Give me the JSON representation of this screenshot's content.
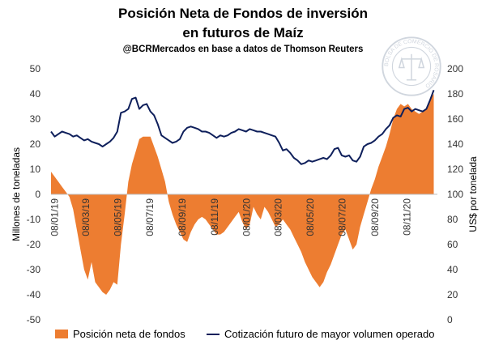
{
  "header": {
    "title_line1": "Posición Neta de Fondos de inversión",
    "title_line2": "en futuros de Maíz",
    "subtitle": "@BCRMercados  en base a datos de Thomson Reuters"
  },
  "colors": {
    "area": "#ED7D31",
    "line": "#0E1F5B",
    "seal": "#7C8CA3"
  },
  "seal_text": "BOLSA DE COMERCIO DE ROSARIO",
  "chart_data": {
    "type": "area",
    "x_tick_labels": [
      "08/01/19",
      "08/03/19",
      "08/05/19",
      "08/07/19",
      "08/09/19",
      "08/11/19",
      "08/01/20",
      "08/03/20",
      "08/05/20",
      "08/07/20",
      "08/09/20",
      "08/11/20"
    ],
    "x_tick_dates": [
      "2019-01-08",
      "2019-03-08",
      "2019-05-08",
      "2019-07-08",
      "2019-09-08",
      "2019-11-08",
      "2020-01-08",
      "2020-03-08",
      "2020-05-08",
      "2020-07-08",
      "2020-09-08",
      "2020-11-08"
    ],
    "x_range": [
      "2019-01-01",
      "2021-01-05"
    ],
    "y_left": {
      "label": "Millones de toneladas",
      "min": -50,
      "max": 50,
      "ticks": [
        -50,
        -40,
        -30,
        -20,
        -10,
        0,
        10,
        20,
        30,
        40,
        50
      ]
    },
    "y_right": {
      "label": "US$ por tonelada",
      "min": 0,
      "max": 200,
      "ticks": [
        0,
        20,
        40,
        60,
        80,
        100,
        120,
        140,
        160,
        180,
        200
      ]
    },
    "grid": false,
    "legend_position": "bottom",
    "series": [
      {
        "name": "Posición neta de fondos",
        "type": "area",
        "axis": "left",
        "points": [
          [
            "2019-01-01",
            9
          ],
          [
            "2019-01-08",
            7
          ],
          [
            "2019-01-15",
            5
          ],
          [
            "2019-01-22",
            3
          ],
          [
            "2019-01-29",
            1
          ],
          [
            "2019-02-05",
            -1
          ],
          [
            "2019-02-12",
            -6
          ],
          [
            "2019-02-19",
            -14
          ],
          [
            "2019-02-26",
            -22
          ],
          [
            "2019-03-05",
            -30
          ],
          [
            "2019-03-12",
            -34
          ],
          [
            "2019-03-19",
            -27
          ],
          [
            "2019-03-26",
            -35
          ],
          [
            "2019-04-02",
            -37
          ],
          [
            "2019-04-09",
            -39
          ],
          [
            "2019-04-16",
            -40
          ],
          [
            "2019-04-23",
            -38
          ],
          [
            "2019-04-30",
            -35
          ],
          [
            "2019-05-07",
            -36
          ],
          [
            "2019-05-14",
            -20
          ],
          [
            "2019-05-21",
            -8
          ],
          [
            "2019-05-28",
            5
          ],
          [
            "2019-06-04",
            12
          ],
          [
            "2019-06-11",
            17
          ],
          [
            "2019-06-18",
            22
          ],
          [
            "2019-06-25",
            23
          ],
          [
            "2019-07-02",
            23
          ],
          [
            "2019-07-09",
            23
          ],
          [
            "2019-07-16",
            19
          ],
          [
            "2019-07-23",
            15
          ],
          [
            "2019-07-30",
            10
          ],
          [
            "2019-08-06",
            5
          ],
          [
            "2019-08-13",
            -3
          ],
          [
            "2019-08-20",
            -8
          ],
          [
            "2019-08-27",
            -12
          ],
          [
            "2019-09-03",
            -15
          ],
          [
            "2019-09-10",
            -18
          ],
          [
            "2019-09-17",
            -19
          ],
          [
            "2019-09-24",
            -15
          ],
          [
            "2019-10-01",
            -12
          ],
          [
            "2019-10-08",
            -10
          ],
          [
            "2019-10-15",
            -9
          ],
          [
            "2019-10-22",
            -10
          ],
          [
            "2019-10-29",
            -12
          ],
          [
            "2019-11-05",
            -14
          ],
          [
            "2019-11-12",
            -16
          ],
          [
            "2019-11-19",
            -16
          ],
          [
            "2019-11-26",
            -15
          ],
          [
            "2019-12-03",
            -13
          ],
          [
            "2019-12-10",
            -11
          ],
          [
            "2019-12-17",
            -9
          ],
          [
            "2019-12-24",
            -7
          ],
          [
            "2019-12-31",
            -11
          ],
          [
            "2020-01-07",
            -14
          ],
          [
            "2020-01-14",
            -12
          ],
          [
            "2020-01-21",
            -5
          ],
          [
            "2020-01-28",
            -8
          ],
          [
            "2020-02-04",
            -10
          ],
          [
            "2020-02-11",
            -5
          ],
          [
            "2020-02-18",
            -7
          ],
          [
            "2020-02-25",
            -10
          ],
          [
            "2020-03-03",
            -13
          ],
          [
            "2020-03-10",
            -12
          ],
          [
            "2020-03-17",
            -10
          ],
          [
            "2020-03-24",
            -12
          ],
          [
            "2020-03-31",
            -14
          ],
          [
            "2020-04-07",
            -17
          ],
          [
            "2020-04-14",
            -20
          ],
          [
            "2020-04-21",
            -23
          ],
          [
            "2020-04-28",
            -27
          ],
          [
            "2020-05-05",
            -30
          ],
          [
            "2020-05-12",
            -33
          ],
          [
            "2020-05-19",
            -35
          ],
          [
            "2020-05-26",
            -37
          ],
          [
            "2020-06-02",
            -35
          ],
          [
            "2020-06-09",
            -31
          ],
          [
            "2020-06-16",
            -28
          ],
          [
            "2020-06-23",
            -24
          ],
          [
            "2020-06-30",
            -20
          ],
          [
            "2020-07-07",
            -16
          ],
          [
            "2020-07-14",
            -14
          ],
          [
            "2020-07-21",
            -18
          ],
          [
            "2020-07-28",
            -22
          ],
          [
            "2020-08-04",
            -20
          ],
          [
            "2020-08-11",
            -13
          ],
          [
            "2020-08-18",
            -8
          ],
          [
            "2020-08-25",
            -3
          ],
          [
            "2020-09-01",
            2
          ],
          [
            "2020-09-08",
            6
          ],
          [
            "2020-09-15",
            11
          ],
          [
            "2020-09-22",
            15
          ],
          [
            "2020-09-29",
            19
          ],
          [
            "2020-10-06",
            24
          ],
          [
            "2020-10-13",
            30
          ],
          [
            "2020-10-20",
            34
          ],
          [
            "2020-10-27",
            36
          ],
          [
            "2020-11-03",
            35
          ],
          [
            "2020-11-10",
            36
          ],
          [
            "2020-11-17",
            34
          ],
          [
            "2020-11-24",
            33
          ],
          [
            "2020-12-01",
            32
          ],
          [
            "2020-12-08",
            33
          ],
          [
            "2020-12-15",
            34
          ],
          [
            "2020-12-22",
            38
          ],
          [
            "2020-12-29",
            40
          ]
        ]
      },
      {
        "name": "Cotización futuro de mayor volumen operado",
        "type": "line",
        "axis": "right",
        "points": [
          [
            "2019-01-01",
            150
          ],
          [
            "2019-01-08",
            146
          ],
          [
            "2019-01-15",
            148
          ],
          [
            "2019-01-22",
            150
          ],
          [
            "2019-01-29",
            149
          ],
          [
            "2019-02-05",
            148
          ],
          [
            "2019-02-12",
            146
          ],
          [
            "2019-02-19",
            147
          ],
          [
            "2019-02-26",
            145
          ],
          [
            "2019-03-05",
            143
          ],
          [
            "2019-03-12",
            144
          ],
          [
            "2019-03-19",
            142
          ],
          [
            "2019-03-26",
            141
          ],
          [
            "2019-04-02",
            140
          ],
          [
            "2019-04-09",
            138
          ],
          [
            "2019-04-16",
            140
          ],
          [
            "2019-04-23",
            142
          ],
          [
            "2019-04-30",
            145
          ],
          [
            "2019-05-07",
            150
          ],
          [
            "2019-05-14",
            165
          ],
          [
            "2019-05-21",
            166
          ],
          [
            "2019-05-28",
            168
          ],
          [
            "2019-06-04",
            176
          ],
          [
            "2019-06-11",
            177
          ],
          [
            "2019-06-18",
            168
          ],
          [
            "2019-06-25",
            171
          ],
          [
            "2019-07-02",
            172
          ],
          [
            "2019-07-09",
            166
          ],
          [
            "2019-07-16",
            163
          ],
          [
            "2019-07-23",
            156
          ],
          [
            "2019-07-30",
            147
          ],
          [
            "2019-08-06",
            145
          ],
          [
            "2019-08-13",
            143
          ],
          [
            "2019-08-20",
            141
          ],
          [
            "2019-08-27",
            142
          ],
          [
            "2019-09-03",
            144
          ],
          [
            "2019-09-10",
            150
          ],
          [
            "2019-09-17",
            153
          ],
          [
            "2019-09-24",
            154
          ],
          [
            "2019-10-01",
            153
          ],
          [
            "2019-10-08",
            152
          ],
          [
            "2019-10-15",
            150
          ],
          [
            "2019-10-22",
            150
          ],
          [
            "2019-10-29",
            149
          ],
          [
            "2019-11-05",
            147
          ],
          [
            "2019-11-12",
            145
          ],
          [
            "2019-11-19",
            147
          ],
          [
            "2019-11-26",
            146
          ],
          [
            "2019-12-03",
            147
          ],
          [
            "2019-12-10",
            149
          ],
          [
            "2019-12-17",
            150
          ],
          [
            "2019-12-24",
            152
          ],
          [
            "2019-12-31",
            151
          ],
          [
            "2020-01-07",
            150
          ],
          [
            "2020-01-14",
            152
          ],
          [
            "2020-01-21",
            151
          ],
          [
            "2020-01-28",
            150
          ],
          [
            "2020-02-04",
            150
          ],
          [
            "2020-02-11",
            149
          ],
          [
            "2020-02-18",
            148
          ],
          [
            "2020-02-25",
            147
          ],
          [
            "2020-03-03",
            146
          ],
          [
            "2020-03-10",
            141
          ],
          [
            "2020-03-17",
            135
          ],
          [
            "2020-03-24",
            136
          ],
          [
            "2020-03-31",
            133
          ],
          [
            "2020-04-07",
            129
          ],
          [
            "2020-04-14",
            127
          ],
          [
            "2020-04-21",
            124
          ],
          [
            "2020-04-28",
            125
          ],
          [
            "2020-05-05",
            127
          ],
          [
            "2020-05-12",
            126
          ],
          [
            "2020-05-19",
            127
          ],
          [
            "2020-05-26",
            128
          ],
          [
            "2020-06-02",
            129
          ],
          [
            "2020-06-09",
            128
          ],
          [
            "2020-06-16",
            131
          ],
          [
            "2020-06-23",
            136
          ],
          [
            "2020-06-30",
            137
          ],
          [
            "2020-07-07",
            131
          ],
          [
            "2020-07-14",
            130
          ],
          [
            "2020-07-21",
            131
          ],
          [
            "2020-07-28",
            127
          ],
          [
            "2020-08-04",
            126
          ],
          [
            "2020-08-11",
            130
          ],
          [
            "2020-08-18",
            138
          ],
          [
            "2020-08-25",
            140
          ],
          [
            "2020-09-01",
            141
          ],
          [
            "2020-09-08",
            143
          ],
          [
            "2020-09-15",
            146
          ],
          [
            "2020-09-22",
            148
          ],
          [
            "2020-09-29",
            152
          ],
          [
            "2020-10-06",
            155
          ],
          [
            "2020-10-13",
            161
          ],
          [
            "2020-10-20",
            163
          ],
          [
            "2020-10-27",
            162
          ],
          [
            "2020-11-03",
            168
          ],
          [
            "2020-11-10",
            169
          ],
          [
            "2020-11-17",
            166
          ],
          [
            "2020-11-24",
            168
          ],
          [
            "2020-12-01",
            167
          ],
          [
            "2020-12-08",
            166
          ],
          [
            "2020-12-15",
            168
          ],
          [
            "2020-12-22",
            175
          ],
          [
            "2020-12-29",
            183
          ]
        ]
      }
    ]
  }
}
